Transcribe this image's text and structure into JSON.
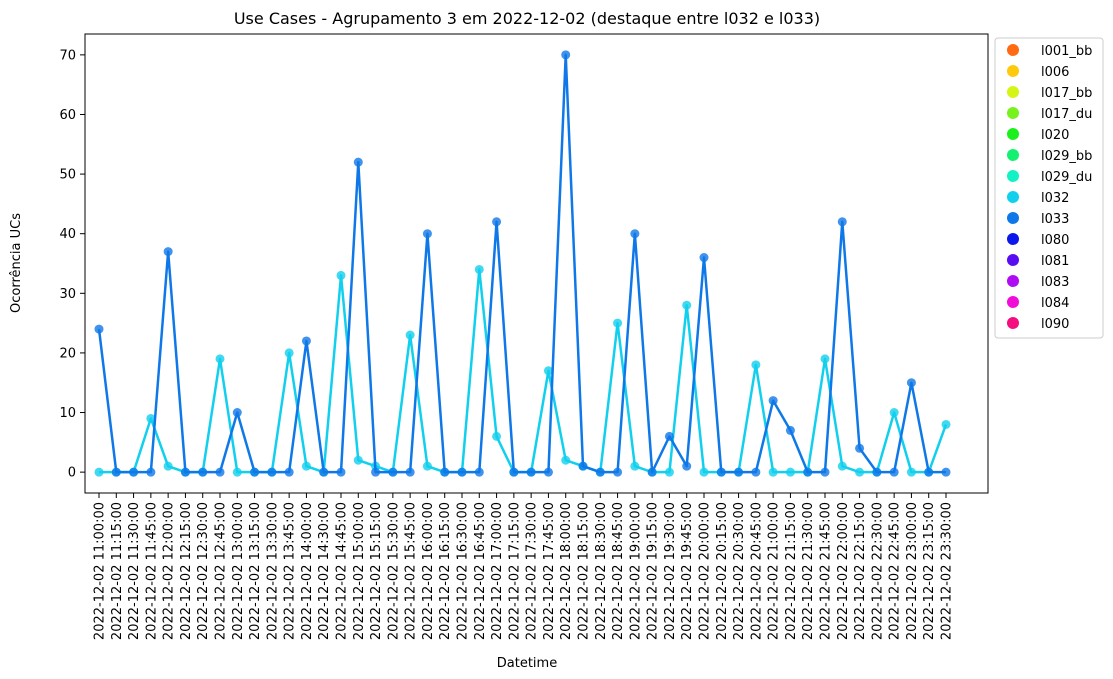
{
  "chart_data": {
    "type": "line",
    "title": "Use Cases - Agrupamento 3 em 2022-12-02 (destaque entre l032 e l033)",
    "xlabel": "Datetime",
    "ylabel": "Ocorrência UCs",
    "ylim": [
      -3.5,
      73.5
    ],
    "yticks": [
      0,
      10,
      20,
      30,
      40,
      50,
      60,
      70
    ],
    "grid": false,
    "legend_position": "outside-right",
    "x": [
      "2022-12-02 11:00:00",
      "2022-12-02 11:15:00",
      "2022-12-02 11:30:00",
      "2022-12-02 11:45:00",
      "2022-12-02 12:00:00",
      "2022-12-02 12:15:00",
      "2022-12-02 12:30:00",
      "2022-12-02 12:45:00",
      "2022-12-02 13:00:00",
      "2022-12-02 13:15:00",
      "2022-12-02 13:30:00",
      "2022-12-02 13:45:00",
      "2022-12-02 14:00:00",
      "2022-12-02 14:30:00",
      "2022-12-02 14:45:00",
      "2022-12-02 15:00:00",
      "2022-12-02 15:15:00",
      "2022-12-02 15:30:00",
      "2022-12-02 15:45:00",
      "2022-12-02 16:00:00",
      "2022-12-02 16:15:00",
      "2022-12-02 16:30:00",
      "2022-12-02 16:45:00",
      "2022-12-02 17:00:00",
      "2022-12-02 17:15:00",
      "2022-12-02 17:30:00",
      "2022-12-02 17:45:00",
      "2022-12-02 18:00:00",
      "2022-12-02 18:15:00",
      "2022-12-02 18:30:00",
      "2022-12-02 18:45:00",
      "2022-12-02 19:00:00",
      "2022-12-02 19:15:00",
      "2022-12-02 19:30:00",
      "2022-12-02 19:45:00",
      "2022-12-02 20:00:00",
      "2022-12-02 20:15:00",
      "2022-12-02 20:30:00",
      "2022-12-02 20:45:00",
      "2022-12-02 21:00:00",
      "2022-12-02 21:15:00",
      "2022-12-02 21:30:00",
      "2022-12-02 21:45:00",
      "2022-12-02 22:00:00",
      "2022-12-02 22:15:00",
      "2022-12-02 22:30:00",
      "2022-12-02 22:45:00",
      "2022-12-02 23:00:00",
      "2022-12-02 23:15:00",
      "2022-12-02 23:30:00"
    ],
    "series": [
      {
        "name": "l032",
        "color": "#11d0ee",
        "values": [
          0,
          0,
          0,
          9,
          1,
          0,
          0,
          19,
          0,
          0,
          0,
          20,
          1,
          0,
          33,
          2,
          1,
          0,
          23,
          1,
          0,
          0,
          34,
          6,
          0,
          0,
          17,
          2,
          1,
          0,
          25,
          1,
          0,
          0,
          28,
          0,
          0,
          0,
          18,
          0,
          0,
          0,
          19,
          1,
          0,
          0,
          10,
          0,
          0,
          8
        ]
      },
      {
        "name": "l033",
        "color": "#0f78e8",
        "values": [
          24,
          0,
          0,
          0,
          37,
          0,
          0,
          0,
          10,
          0,
          0,
          0,
          22,
          0,
          0,
          52,
          0,
          0,
          0,
          40,
          0,
          0,
          0,
          42,
          0,
          0,
          0,
          70,
          1,
          0,
          0,
          40,
          0,
          6,
          1,
          36,
          0,
          0,
          0,
          12,
          7,
          0,
          0,
          42,
          4,
          0,
          0,
          15,
          0,
          0
        ]
      }
    ],
    "legend": [
      {
        "label": "l001_bb",
        "color": "#ff6a13"
      },
      {
        "label": "l006",
        "color": "#ffc90e"
      },
      {
        "label": "l017_bb",
        "color": "#d4f516"
      },
      {
        "label": "l017_du",
        "color": "#78f21c"
      },
      {
        "label": "l020",
        "color": "#1cf01c"
      },
      {
        "label": "l029_bb",
        "color": "#14f070"
      },
      {
        "label": "l029_du",
        "color": "#12f2c4"
      },
      {
        "label": "l032",
        "color": "#11d0ee"
      },
      {
        "label": "l033",
        "color": "#0f78e8"
      },
      {
        "label": "l080",
        "color": "#0b18ec"
      },
      {
        "label": "l081",
        "color": "#5a0cf0"
      },
      {
        "label": "l083",
        "color": "#b00cf2"
      },
      {
        "label": "l084",
        "color": "#f20cd8"
      },
      {
        "label": "l090",
        "color": "#f50c7e"
      }
    ]
  }
}
